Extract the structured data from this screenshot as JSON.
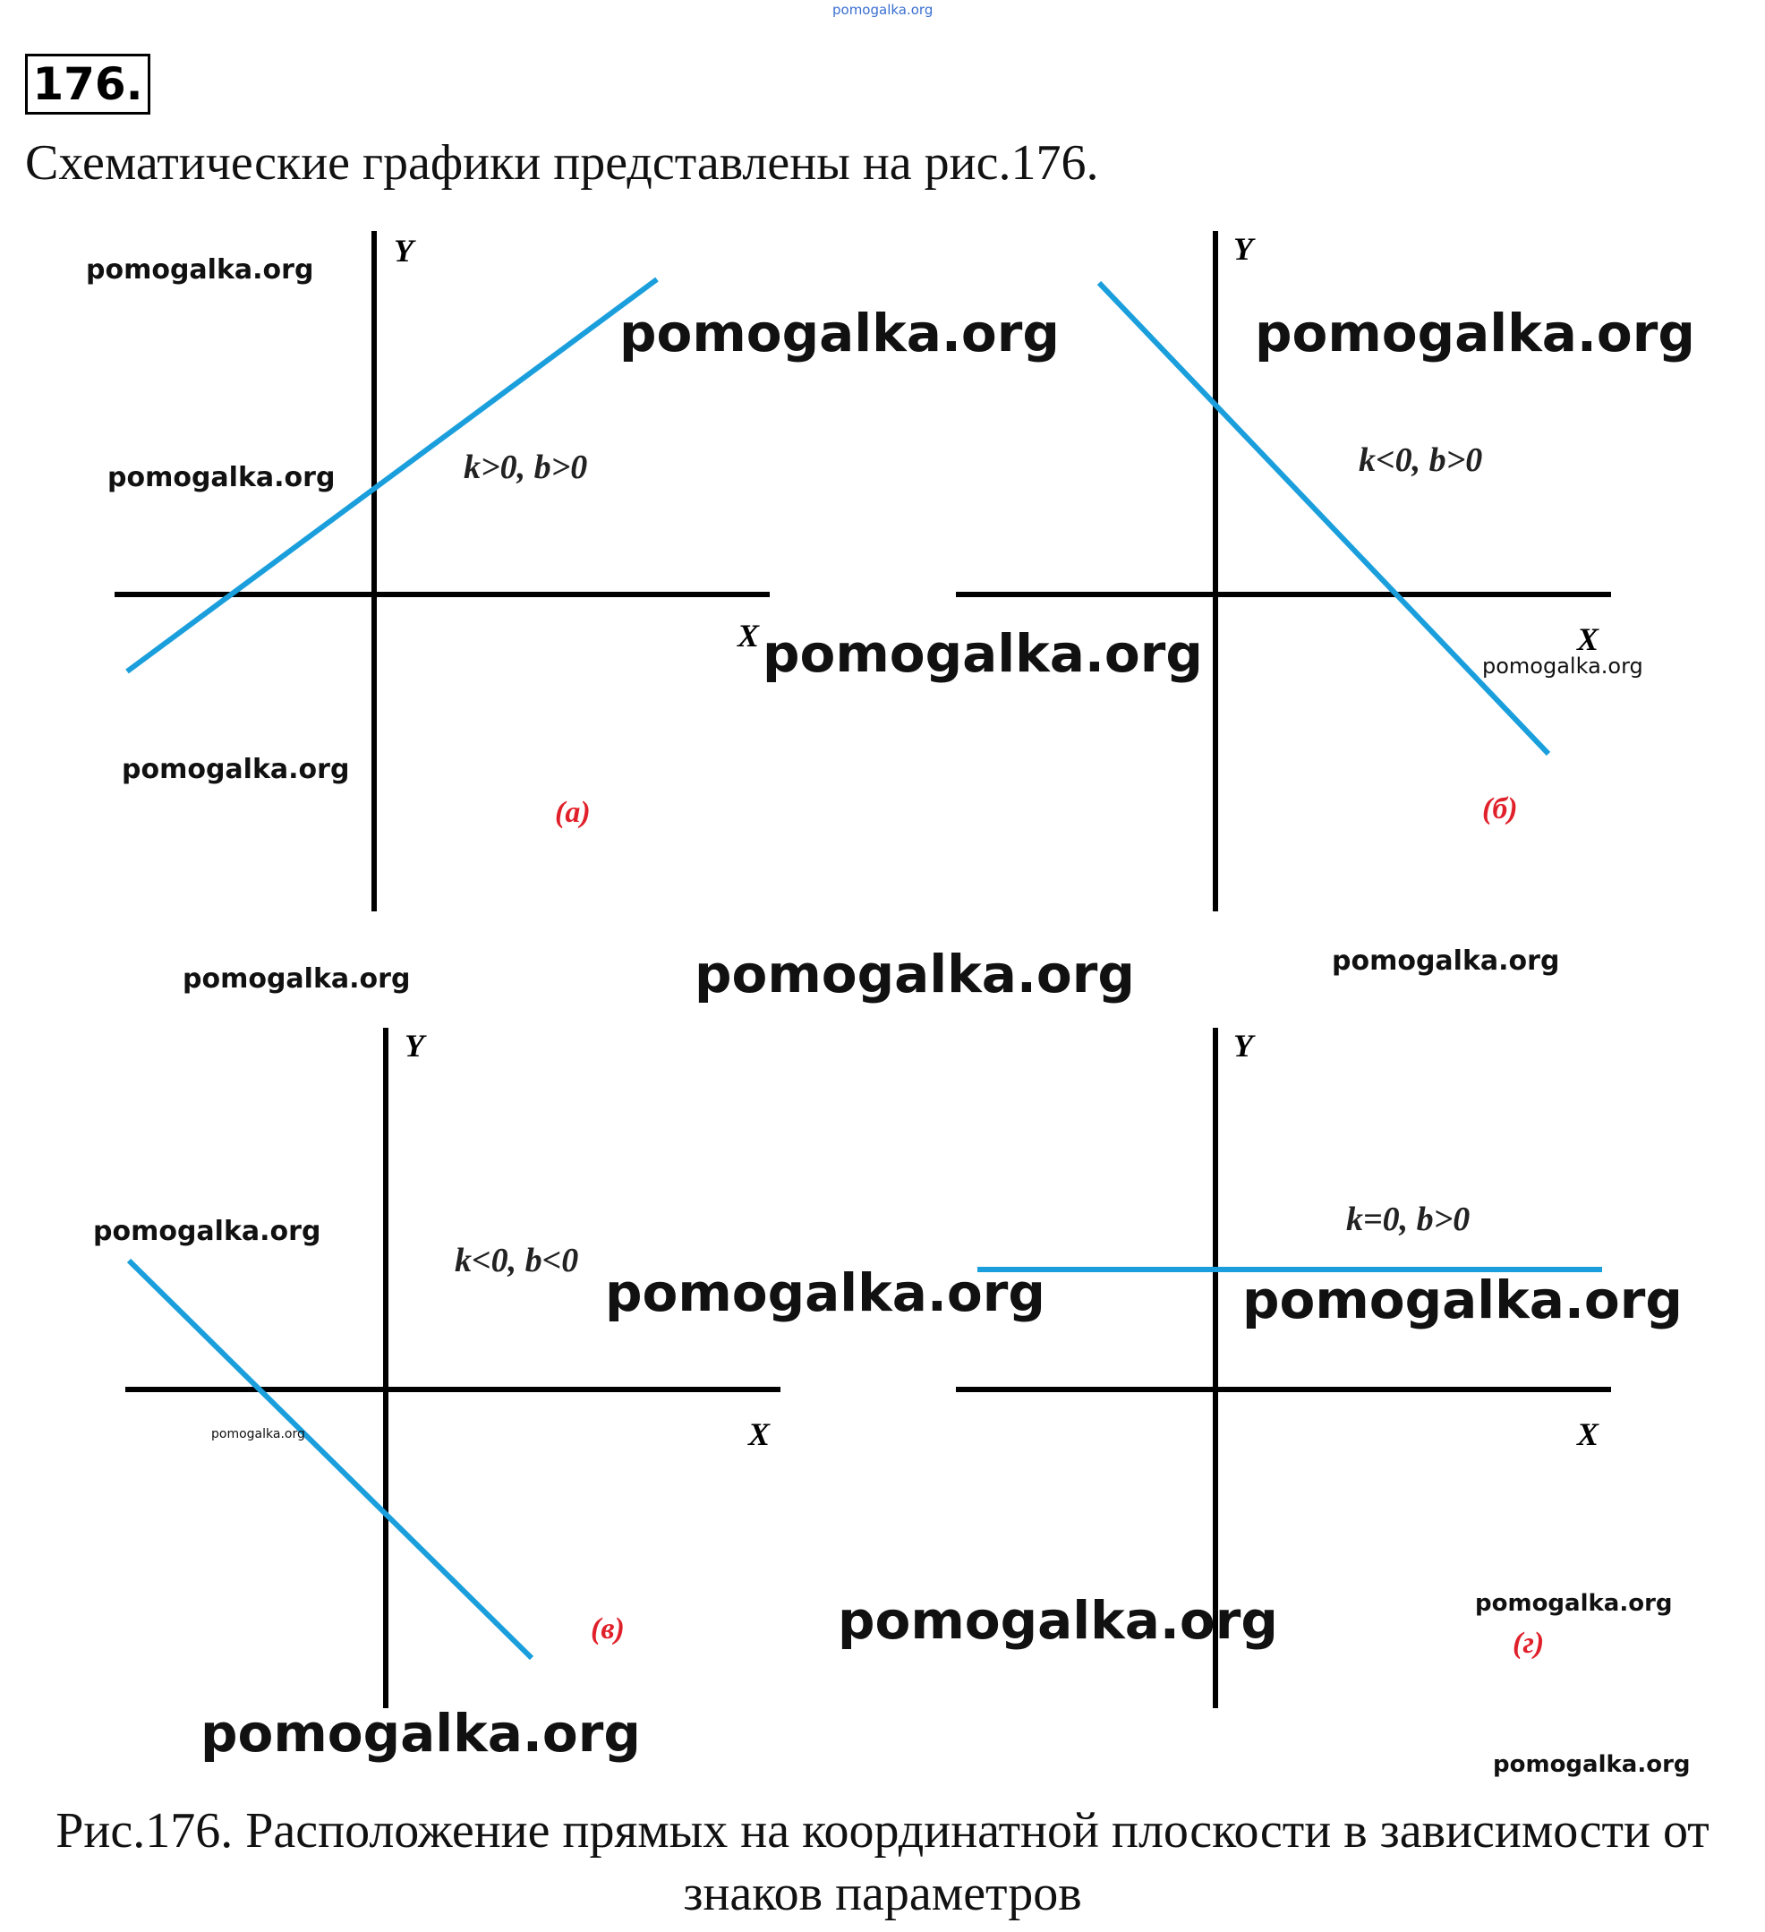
{
  "header": {
    "top_watermark": "pomogalka.org",
    "problem_number": "176.",
    "intro": "Схематические графики представлены на рис.176."
  },
  "caption": {
    "line1": "Рис.176. Расположение прямых на координатной плоскости в зависимости от",
    "line2": "знаков параметров"
  },
  "watermark_text": "pomogalka.org",
  "colors": {
    "line": "#1a9fdc",
    "axes": "#000000",
    "panel_label": "#e0202a"
  },
  "panels": [
    {
      "id": "a",
      "label": "(а)",
      "condition": "k>0, b>0",
      "x_label": "X",
      "y_label": "Y",
      "slope": "positive",
      "intercept": "positive"
    },
    {
      "id": "b",
      "label": "(б)",
      "condition": "k<0, b>0",
      "x_label": "X",
      "y_label": "Y",
      "slope": "negative",
      "intercept": "positive"
    },
    {
      "id": "c",
      "label": "(в)",
      "condition": "k<0, b<0",
      "x_label": "X",
      "y_label": "Y",
      "slope": "negative",
      "intercept": "negative"
    },
    {
      "id": "d",
      "label": "(г)",
      "condition": "k=0, b>0",
      "x_label": "X",
      "y_label": "Y",
      "slope": "zero",
      "intercept": "positive"
    }
  ]
}
